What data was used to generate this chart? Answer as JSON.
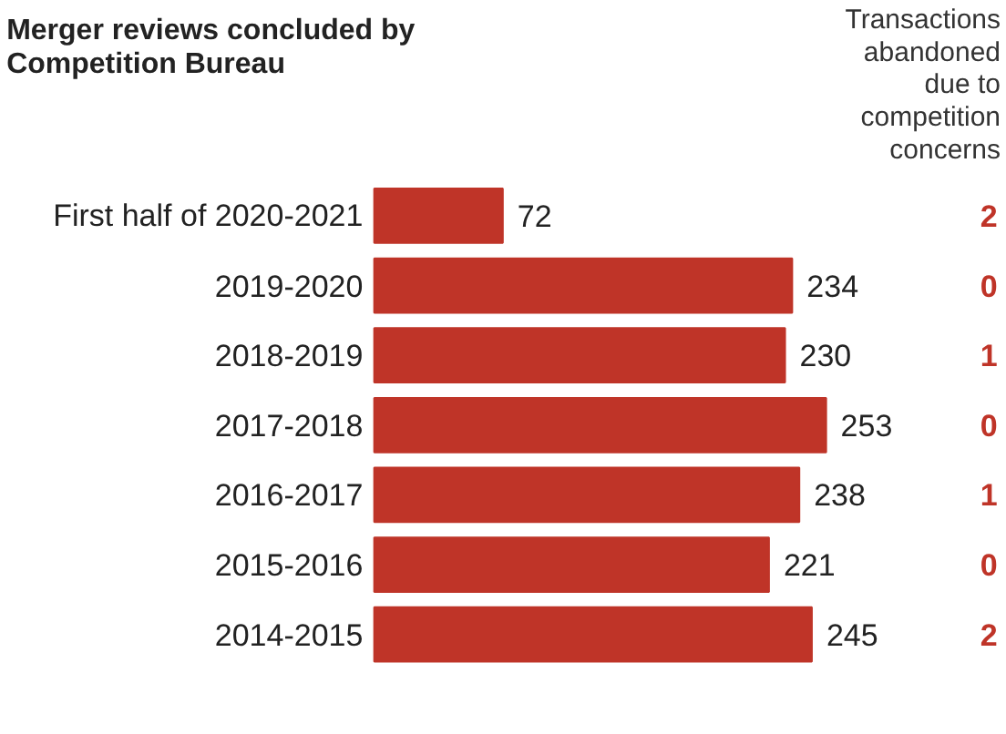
{
  "chart_data": {
    "type": "bar",
    "orientation": "horizontal",
    "title": "Merger reviews concluded by\nCompetition Bureau",
    "categories": [
      "First half of 2020-2021",
      "2019-2020",
      "2018-2019",
      "2017-2018",
      "2016-2017",
      "2015-2016",
      "2014-2015"
    ],
    "values": [
      72,
      234,
      230,
      253,
      238,
      221,
      245
    ],
    "color": "#bf3428",
    "data_labels": true,
    "tick_labels": "y",
    "grid": false,
    "annotations": [
      "Transactions\nabandoned\ndue to\ncompetition\nconcerns",
      "2",
      "0",
      "1",
      "0",
      "1",
      "0",
      "2"
    ]
  }
}
